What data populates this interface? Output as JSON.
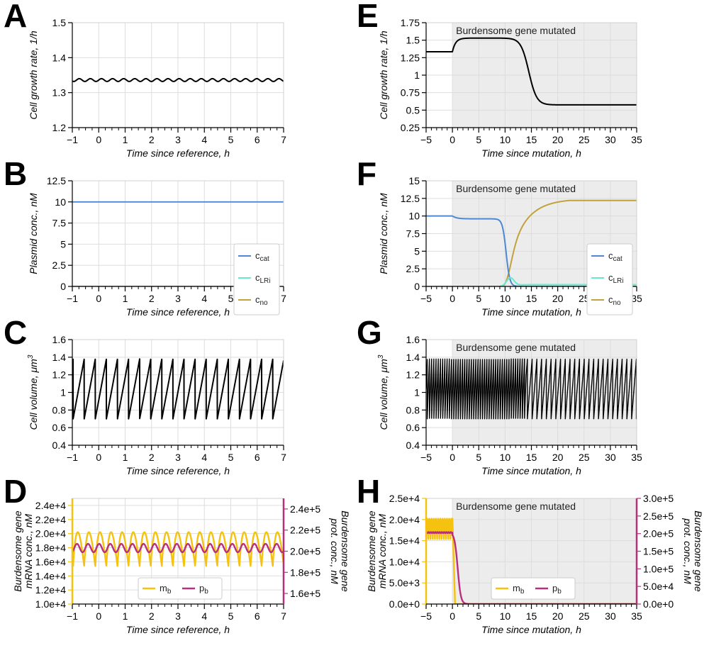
{
  "colors": {
    "black": "#000000",
    "c_cat": "#4c88d4",
    "c_LRi": "#66e8d0",
    "c_no": "#c0a33c",
    "m_b": "#f5c20f",
    "p_b": "#b8307c",
    "shade": "#ececec"
  },
  "chart_data": [
    {
      "id": "A",
      "type": "line",
      "letter": "A",
      "xlabel": "Time since reference, h",
      "ylabel": "Cell growth rate, 1/h",
      "xlim": [
        -1,
        7
      ],
      "ylim": [
        1.2,
        1.5
      ],
      "xticks": [
        -1,
        0,
        1,
        2,
        3,
        4,
        5,
        6,
        7
      ],
      "xticklabels": [
        "−1",
        "0",
        "1",
        "2",
        "3",
        "4",
        "5",
        "6",
        "7"
      ],
      "yticks": [
        1.2,
        1.3,
        1.4,
        1.5
      ],
      "yticklabels": [
        "1.2",
        "1.3",
        "1.4",
        "1.5"
      ],
      "series": [
        {
          "name": "growth rate",
          "color": "black",
          "mean": 1.336,
          "amp": 0.004,
          "period_h": 0.42
        }
      ]
    },
    {
      "id": "B",
      "type": "line",
      "letter": "B",
      "xlabel": "Time since reference, h",
      "ylabel": "Plasmid conc., nM",
      "xlim": [
        -1,
        7
      ],
      "ylim": [
        0,
        12.5
      ],
      "xticks": [
        -1,
        0,
        1,
        2,
        3,
        4,
        5,
        6,
        7
      ],
      "xticklabels": [
        "−1",
        "0",
        "1",
        "2",
        "3",
        "4",
        "5",
        "6",
        "7"
      ],
      "yticks": [
        0,
        2.5,
        5,
        7.5,
        10,
        12.5
      ],
      "yticklabels": [
        "0",
        "2.5",
        "5",
        "7.5",
        "10",
        "12.5"
      ],
      "series": [
        {
          "name": "c_cat",
          "color": "c_cat",
          "value": 10
        },
        {
          "name": "c_LRi",
          "color": "c_LRi",
          "value": 0
        },
        {
          "name": "c_no",
          "color": "c_no",
          "value": 0
        }
      ],
      "legend": [
        {
          "base": "c",
          "sub": "cat",
          "color": "c_cat"
        },
        {
          "base": "c",
          "sub": "LRi",
          "color": "c_LRi"
        },
        {
          "base": "c",
          "sub": "no",
          "color": "c_no"
        }
      ]
    },
    {
      "id": "C",
      "type": "line",
      "letter": "C",
      "xlabel": "Time since reference, h",
      "ylabel": "Cell volume, μm",
      "ylabel_sup": "3",
      "xlim": [
        -1,
        7
      ],
      "ylim": [
        0.4,
        1.6
      ],
      "xticks": [
        -1,
        0,
        1,
        2,
        3,
        4,
        5,
        6,
        7
      ],
      "xticklabels": [
        "−1",
        "0",
        "1",
        "2",
        "3",
        "4",
        "5",
        "6",
        "7"
      ],
      "yticks": [
        0.4,
        0.6,
        0.8,
        1.0,
        1.2,
        1.4,
        1.6
      ],
      "yticklabels": [
        "0.4",
        "0.6",
        "0.8",
        "1",
        "1.2",
        "1.4",
        "1.6"
      ],
      "series": [
        {
          "name": "volume",
          "color": "black",
          "min": 0.7,
          "max": 1.38,
          "period_h": 0.42,
          "start": 1.05
        }
      ]
    },
    {
      "id": "D",
      "type": "line",
      "letter": "D",
      "xlabel": "Time since reference, h",
      "ylabel_lines": [
        "Burdensome gene",
        "mRNA conc., nM"
      ],
      "y2label_lines": [
        "Burdensome gene",
        "prot. conc., nM"
      ],
      "xlim": [
        -1,
        7
      ],
      "ylim": [
        10000,
        25000
      ],
      "y2lim": [
        150000,
        250000
      ],
      "xticks": [
        -1,
        0,
        1,
        2,
        3,
        4,
        5,
        6,
        7
      ],
      "xticklabels": [
        "−1",
        "0",
        "1",
        "2",
        "3",
        "4",
        "5",
        "6",
        "7"
      ],
      "yticks": [
        10000,
        12000,
        14000,
        16000,
        18000,
        20000,
        22000,
        24000
      ],
      "yticklabels": [
        "1.0e+4",
        "1.2e+4",
        "1.4e+4",
        "1.6e+4",
        "1.8e+4",
        "2.0e+4",
        "2.2e+4",
        "2.4e+4"
      ],
      "y2ticks": [
        160000,
        180000,
        200000,
        220000,
        240000
      ],
      "y2ticklabels": [
        "1.6e+5",
        "1.8e+5",
        "2.0e+5",
        "2.2e+5",
        "2.4e+5"
      ],
      "series": [
        {
          "name": "m_b",
          "color": "m_b",
          "axis": "left",
          "min": 15400,
          "max": 20200,
          "period_h": 0.42
        },
        {
          "name": "p_b",
          "color": "p_b",
          "axis": "right",
          "min": 199000,
          "max": 207000,
          "period_h": 0.42
        }
      ],
      "legend": [
        {
          "base": "m",
          "sub": "b",
          "color": "m_b"
        },
        {
          "base": "p",
          "sub": "b",
          "color": "p_b"
        }
      ]
    },
    {
      "id": "E",
      "type": "line",
      "letter": "E",
      "xlabel": "Time since mutation, h",
      "ylabel": "Cell growth rate, 1/h",
      "annotation": "Burdensome gene mutated",
      "xlim": [
        -5,
        35
      ],
      "ylim": [
        0.25,
        1.75
      ],
      "xticks": [
        -5,
        0,
        5,
        10,
        15,
        20,
        25,
        30,
        35
      ],
      "xticklabels": [
        "−5",
        "0",
        "5",
        "10",
        "15",
        "20",
        "25",
        "30",
        "35"
      ],
      "yticks": [
        0.25,
        0.5,
        0.75,
        1.0,
        1.25,
        1.5,
        1.75
      ],
      "yticklabels": [
        "0.25",
        "0.5",
        "0.75",
        "1",
        "1.25",
        "1.5",
        "1.75"
      ],
      "series": [
        {
          "name": "growth rate",
          "color": "black",
          "before": 1.335,
          "after_mutation": 1.53,
          "final": 0.575,
          "drop_center_h": 14.5
        }
      ]
    },
    {
      "id": "F",
      "type": "line",
      "letter": "F",
      "xlabel": "Time since mutation, h",
      "ylabel": "Plasmid conc., nM",
      "annotation": "Burdensome gene mutated",
      "xlim": [
        -5,
        35
      ],
      "ylim": [
        0,
        15
      ],
      "xticks": [
        -5,
        0,
        5,
        10,
        15,
        20,
        25,
        30,
        35
      ],
      "xticklabels": [
        "−5",
        "0",
        "5",
        "10",
        "15",
        "20",
        "25",
        "30",
        "35"
      ],
      "yticks": [
        0,
        2.5,
        5,
        7.5,
        10,
        12.5,
        15
      ],
      "yticklabels": [
        "0",
        "2.5",
        "5",
        "7.5",
        "10",
        "12.5",
        "15"
      ],
      "series": [
        {
          "name": "c_cat",
          "color": "c_cat",
          "before": 10,
          "after": 9.6,
          "drop_center_h": 10.2,
          "final": 0
        },
        {
          "name": "c_LRi",
          "color": "c_LRi",
          "peak": 1.2,
          "peak_h": 11.0,
          "final": 0.25
        },
        {
          "name": "c_no",
          "color": "c_no",
          "rise_start_h": 9.5,
          "final": 12.2
        }
      ],
      "legend": [
        {
          "base": "c",
          "sub": "cat",
          "color": "c_cat"
        },
        {
          "base": "c",
          "sub": "LRi",
          "color": "c_LRi"
        },
        {
          "base": "c",
          "sub": "no",
          "color": "c_no"
        }
      ]
    },
    {
      "id": "G",
      "type": "line",
      "letter": "G",
      "xlabel": "Time since mutation, h",
      "ylabel": "Cell volume, μm",
      "ylabel_sup": "3",
      "annotation": "Burdensome gene mutated",
      "xlim": [
        -5,
        35
      ],
      "ylim": [
        0.4,
        1.6
      ],
      "xticks": [
        -5,
        0,
        5,
        10,
        15,
        20,
        25,
        30,
        35
      ],
      "xticklabels": [
        "−5",
        "0",
        "5",
        "10",
        "15",
        "20",
        "25",
        "30",
        "35"
      ],
      "yticks": [
        0.4,
        0.6,
        0.8,
        1.0,
        1.2,
        1.4,
        1.6
      ],
      "yticklabels": [
        "0.4",
        "0.6",
        "0.8",
        "1",
        "1.2",
        "1.4",
        "1.6"
      ],
      "series": [
        {
          "name": "volume",
          "color": "black",
          "min": 0.7,
          "max": 1.38,
          "period_before_h": 0.42,
          "period_after_h": 0.9,
          "transition_h": 14
        }
      ]
    },
    {
      "id": "H",
      "type": "line",
      "letter": "H",
      "xlabel": "Time since mutation, h",
      "ylabel_lines": [
        "Burdensome gene",
        "mRNA conc., nM"
      ],
      "y2label_lines": [
        "Burdensome gene",
        "prot. conc., nM"
      ],
      "annotation": "Burdensome gene mutated",
      "xlim": [
        -5,
        35
      ],
      "ylim": [
        0,
        25000
      ],
      "y2lim": [
        0,
        300000
      ],
      "xticks": [
        -5,
        0,
        5,
        10,
        15,
        20,
        25,
        30,
        35
      ],
      "xticklabels": [
        "−5",
        "0",
        "5",
        "10",
        "15",
        "20",
        "25",
        "30",
        "35"
      ],
      "yticks": [
        0,
        5000,
        10000,
        15000,
        20000,
        25000
      ],
      "yticklabels": [
        "0.0e+0",
        "5.0e+3",
        "1.0e+4",
        "1.5e+4",
        "2.0e+4",
        "2.5e+4"
      ],
      "y2ticks": [
        0,
        50000,
        100000,
        150000,
        200000,
        250000,
        300000
      ],
      "y2ticklabels": [
        "0.0e+0",
        "5.0e+4",
        "1.0e+5",
        "1.5e+5",
        "2.0e+5",
        "2.5e+5",
        "3.0e+5"
      ],
      "series": [
        {
          "name": "m_b",
          "color": "m_b",
          "axis": "left",
          "min": 15400,
          "max": 20200,
          "decay_end_h": 0.5
        },
        {
          "name": "p_b",
          "color": "p_b",
          "axis": "right",
          "value": 203000,
          "decay_end_h": 2.5
        }
      ],
      "legend": [
        {
          "base": "m",
          "sub": "b",
          "color": "m_b"
        },
        {
          "base": "p",
          "sub": "b",
          "color": "p_b"
        }
      ]
    }
  ]
}
